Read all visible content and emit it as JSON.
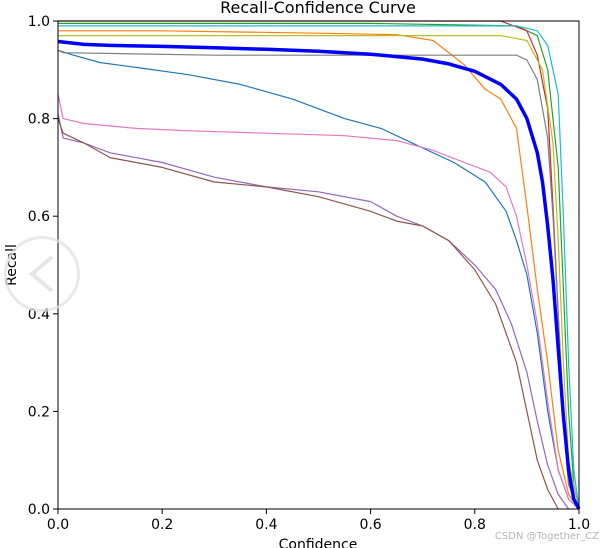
{
  "chart_data": {
    "type": "line",
    "title": "Recall-Confidence Curve",
    "xlabel": "Confidence",
    "ylabel": "Recall",
    "xlim": [
      0.0,
      1.0
    ],
    "ylim": [
      0.0,
      1.0
    ],
    "xticks": [
      "0.0",
      "0.2",
      "0.4",
      "0.6",
      "0.8",
      "1.0"
    ],
    "yticks": [
      "0.0",
      "0.2",
      "0.4",
      "0.6",
      "0.8",
      "1.0"
    ],
    "grid": false,
    "legend": "none",
    "series": [
      {
        "color": "#1f77b4",
        "points": [
          [
            0.0,
            0.94
          ],
          [
            0.03,
            0.93
          ],
          [
            0.08,
            0.915
          ],
          [
            0.15,
            0.905
          ],
          [
            0.25,
            0.89
          ],
          [
            0.35,
            0.87
          ],
          [
            0.45,
            0.84
          ],
          [
            0.55,
            0.8
          ],
          [
            0.62,
            0.78
          ],
          [
            0.7,
            0.74
          ],
          [
            0.76,
            0.71
          ],
          [
            0.82,
            0.67
          ],
          [
            0.86,
            0.61
          ],
          [
            0.88,
            0.55
          ],
          [
            0.9,
            0.48
          ],
          [
            0.92,
            0.36
          ],
          [
            0.94,
            0.2
          ],
          [
            0.96,
            0.08
          ],
          [
            0.98,
            0.02
          ],
          [
            1.0,
            0.0
          ]
        ]
      },
      {
        "color": "#ff7f0e",
        "points": [
          [
            0.0,
            0.98
          ],
          [
            0.2,
            0.98
          ],
          [
            0.5,
            0.975
          ],
          [
            0.65,
            0.972
          ],
          [
            0.72,
            0.96
          ],
          [
            0.78,
            0.91
          ],
          [
            0.82,
            0.86
          ],
          [
            0.85,
            0.84
          ],
          [
            0.88,
            0.78
          ],
          [
            0.9,
            0.62
          ],
          [
            0.92,
            0.45
          ],
          [
            0.94,
            0.3
          ],
          [
            0.96,
            0.12
          ],
          [
            0.98,
            0.03
          ],
          [
            1.0,
            0.0
          ]
        ]
      },
      {
        "color": "#2ca02c",
        "points": [
          [
            0.0,
            0.995
          ],
          [
            0.6,
            0.995
          ],
          [
            0.88,
            0.99
          ],
          [
            0.92,
            0.97
          ],
          [
            0.94,
            0.9
          ],
          [
            0.96,
            0.7
          ],
          [
            0.97,
            0.45
          ],
          [
            0.98,
            0.2
          ],
          [
            0.99,
            0.05
          ],
          [
            1.0,
            0.0
          ]
        ]
      },
      {
        "color": "#d62728",
        "points": [
          [
            0.0,
            1.0
          ],
          [
            0.85,
            1.0
          ],
          [
            0.9,
            0.98
          ],
          [
            0.92,
            0.93
          ],
          [
            0.94,
            0.82
          ],
          [
            0.95,
            0.62
          ],
          [
            0.96,
            0.4
          ],
          [
            0.97,
            0.18
          ],
          [
            0.98,
            0.05
          ],
          [
            1.0,
            0.0
          ]
        ]
      },
      {
        "color": "#9467bd",
        "points": [
          [
            0.0,
            0.81
          ],
          [
            0.01,
            0.76
          ],
          [
            0.05,
            0.75
          ],
          [
            0.1,
            0.73
          ],
          [
            0.2,
            0.71
          ],
          [
            0.3,
            0.68
          ],
          [
            0.4,
            0.66
          ],
          [
            0.5,
            0.65
          ],
          [
            0.6,
            0.63
          ],
          [
            0.65,
            0.6
          ],
          [
            0.7,
            0.58
          ],
          [
            0.75,
            0.55
          ],
          [
            0.8,
            0.5
          ],
          [
            0.84,
            0.45
          ],
          [
            0.87,
            0.38
          ],
          [
            0.9,
            0.28
          ],
          [
            0.92,
            0.18
          ],
          [
            0.94,
            0.09
          ],
          [
            0.96,
            0.03
          ],
          [
            0.98,
            0.0
          ]
        ]
      },
      {
        "color": "#8c564b",
        "points": [
          [
            0.0,
            0.8
          ],
          [
            0.01,
            0.77
          ],
          [
            0.05,
            0.75
          ],
          [
            0.1,
            0.72
          ],
          [
            0.2,
            0.7
          ],
          [
            0.3,
            0.67
          ],
          [
            0.4,
            0.66
          ],
          [
            0.5,
            0.64
          ],
          [
            0.6,
            0.61
          ],
          [
            0.65,
            0.59
          ],
          [
            0.7,
            0.58
          ],
          [
            0.75,
            0.55
          ],
          [
            0.8,
            0.49
          ],
          [
            0.84,
            0.42
          ],
          [
            0.86,
            0.36
          ],
          [
            0.88,
            0.3
          ],
          [
            0.9,
            0.2
          ],
          [
            0.92,
            0.1
          ],
          [
            0.94,
            0.04
          ],
          [
            0.96,
            0.0
          ]
        ]
      },
      {
        "color": "#e377c2",
        "points": [
          [
            0.0,
            0.85
          ],
          [
            0.01,
            0.8
          ],
          [
            0.05,
            0.79
          ],
          [
            0.15,
            0.78
          ],
          [
            0.25,
            0.775
          ],
          [
            0.4,
            0.77
          ],
          [
            0.55,
            0.765
          ],
          [
            0.65,
            0.755
          ],
          [
            0.72,
            0.735
          ],
          [
            0.78,
            0.71
          ],
          [
            0.83,
            0.69
          ],
          [
            0.86,
            0.66
          ],
          [
            0.88,
            0.6
          ],
          [
            0.9,
            0.5
          ],
          [
            0.92,
            0.38
          ],
          [
            0.94,
            0.22
          ],
          [
            0.96,
            0.08
          ],
          [
            0.98,
            0.02
          ],
          [
            1.0,
            0.0
          ]
        ]
      },
      {
        "color": "#7f7f7f",
        "points": [
          [
            0.0,
            0.94
          ],
          [
            0.01,
            0.935
          ],
          [
            0.3,
            0.93
          ],
          [
            0.6,
            0.93
          ],
          [
            0.82,
            0.93
          ],
          [
            0.88,
            0.93
          ],
          [
            0.9,
            0.92
          ],
          [
            0.92,
            0.88
          ],
          [
            0.94,
            0.76
          ],
          [
            0.95,
            0.6
          ],
          [
            0.96,
            0.4
          ],
          [
            0.97,
            0.2
          ],
          [
            0.98,
            0.05
          ],
          [
            1.0,
            0.0
          ]
        ]
      },
      {
        "color": "#bcbd22",
        "points": [
          [
            0.0,
            0.97
          ],
          [
            0.5,
            0.97
          ],
          [
            0.85,
            0.97
          ],
          [
            0.9,
            0.96
          ],
          [
            0.93,
            0.9
          ],
          [
            0.95,
            0.75
          ],
          [
            0.96,
            0.55
          ],
          [
            0.97,
            0.3
          ],
          [
            0.98,
            0.1
          ],
          [
            1.0,
            0.0
          ]
        ]
      },
      {
        "color": "#17becf",
        "points": [
          [
            0.0,
            0.99
          ],
          [
            0.6,
            0.99
          ],
          [
            0.88,
            0.99
          ],
          [
            0.92,
            0.98
          ],
          [
            0.94,
            0.95
          ],
          [
            0.96,
            0.85
          ],
          [
            0.97,
            0.6
          ],
          [
            0.98,
            0.3
          ],
          [
            0.99,
            0.08
          ],
          [
            1.0,
            0.0
          ]
        ]
      }
    ],
    "overall": {
      "color": "#0000ff",
      "points": [
        [
          0.0,
          0.958
        ],
        [
          0.05,
          0.952
        ],
        [
          0.1,
          0.95
        ],
        [
          0.2,
          0.948
        ],
        [
          0.3,
          0.945
        ],
        [
          0.4,
          0.942
        ],
        [
          0.5,
          0.938
        ],
        [
          0.6,
          0.932
        ],
        [
          0.7,
          0.922
        ],
        [
          0.75,
          0.912
        ],
        [
          0.8,
          0.897
        ],
        [
          0.85,
          0.87
        ],
        [
          0.88,
          0.84
        ],
        [
          0.9,
          0.8
        ],
        [
          0.92,
          0.73
        ],
        [
          0.93,
          0.67
        ],
        [
          0.94,
          0.58
        ],
        [
          0.95,
          0.47
        ],
        [
          0.96,
          0.33
        ],
        [
          0.97,
          0.19
        ],
        [
          0.98,
          0.08
        ],
        [
          0.99,
          0.02
        ],
        [
          1.0,
          0.0
        ]
      ]
    }
  },
  "watermark": "CSDN @Together_CZ",
  "overlay": {
    "icon": "chevron-left-icon"
  }
}
